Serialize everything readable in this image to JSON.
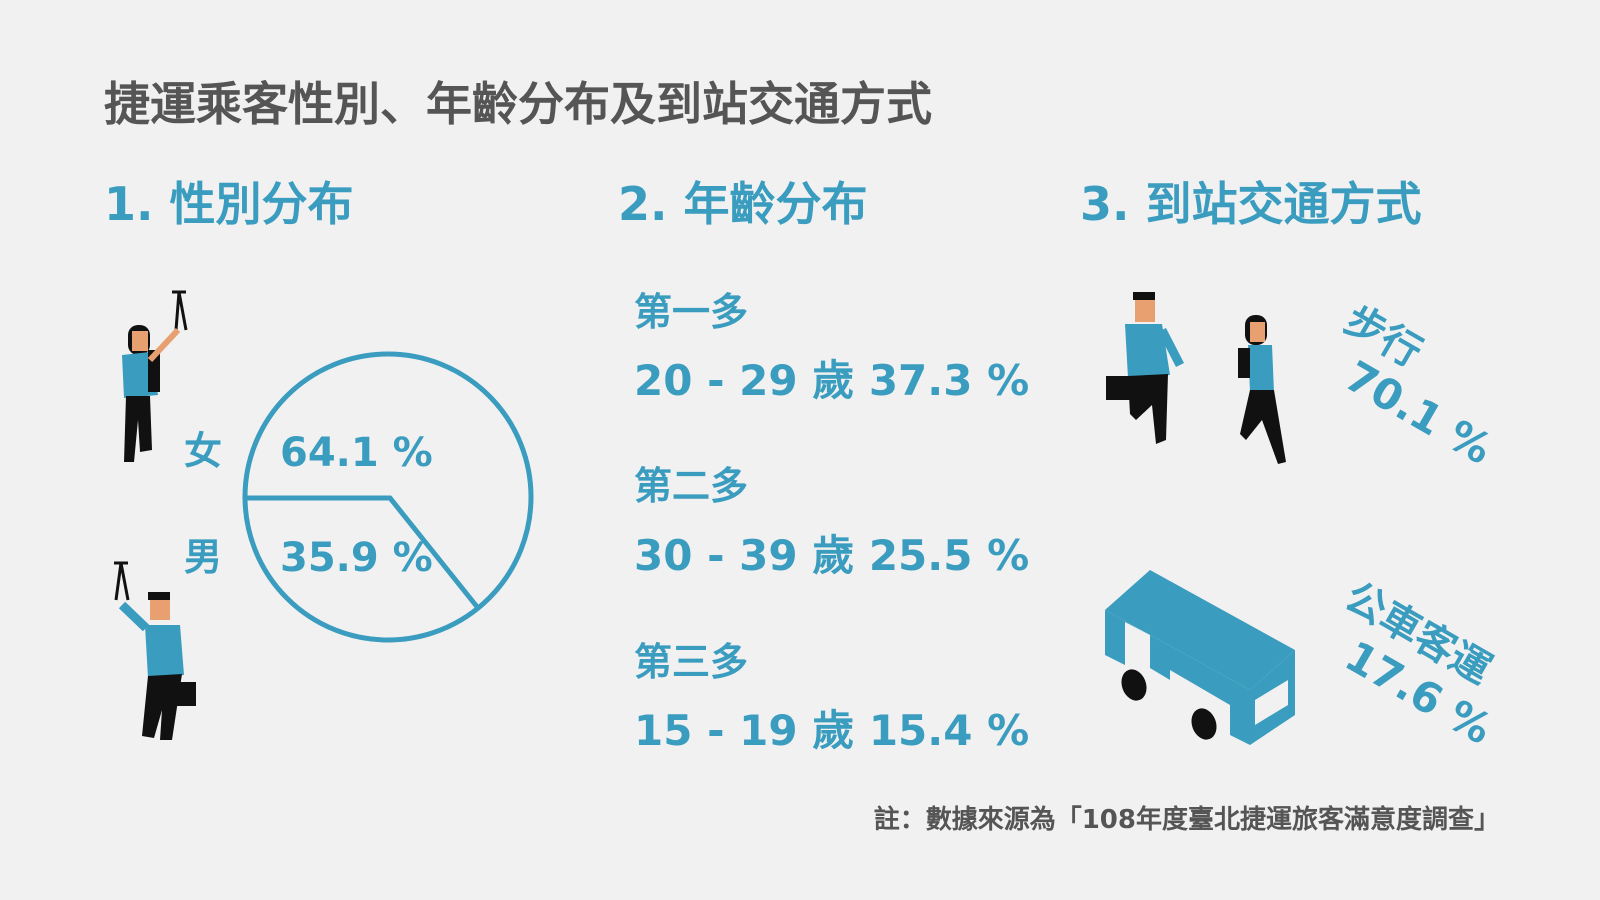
{
  "title": "捷運乘客性別、年齡分布及到站交通方式",
  "sections": [
    {
      "heading": "1. 性別分布",
      "items": [
        {
          "label": "女",
          "value": "64.1 %"
        },
        {
          "label": "男",
          "value": "35.9 %"
        }
      ]
    },
    {
      "heading": "2. 年齡分布",
      "items": [
        {
          "rank": "第一多",
          "text": "20 - 29 歲 37.3 %"
        },
        {
          "rank": "第二多",
          "text": "30 - 39 歲 25.5 %"
        },
        {
          "rank": "第三多",
          "text": "15 - 19 歲 15.4 %"
        }
      ]
    },
    {
      "heading": "3. 到站交通方式",
      "items": [
        {
          "label": "步行",
          "value": "70.1 %"
        },
        {
          "label": "公車客運",
          "value": "17.6 %"
        }
      ]
    }
  ],
  "note": "註：數據來源為「108年度臺北捷運旅客滿意度調查」"
}
